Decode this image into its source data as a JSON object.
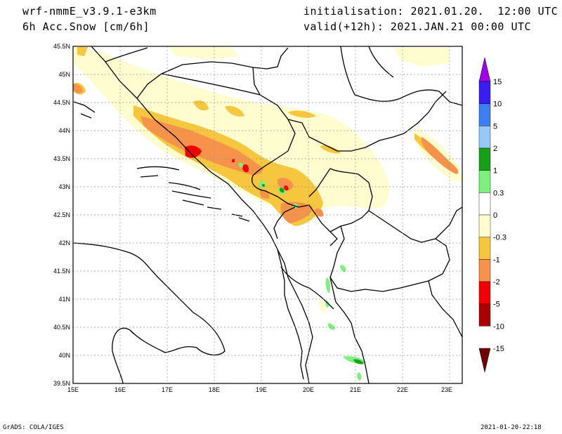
{
  "header": {
    "model": "wrf-nmmE_v3.9.1-e3km",
    "field": "6h Acc.Snow [cm/6h]",
    "init": "initialisation: 2021.01.20.  12:00 UTC",
    "valid": "valid(+12h): 2021.JAN.21 00:00 UTC"
  },
  "map": {
    "lat_labels": [
      "45.5N",
      "45N",
      "44.5N",
      "44N",
      "43.5N",
      "43N",
      "42.5N",
      "42N",
      "41.5N",
      "41N",
      "40.5N",
      "40N",
      "39.5N"
    ],
    "lon_labels": [
      "15E",
      "16E",
      "17E",
      "18E",
      "19E",
      "20E",
      "21E",
      "22E",
      "23E"
    ]
  },
  "colorbar": {
    "labels": [
      "15",
      "10",
      "5",
      "2",
      "1",
      "0.3",
      "0",
      "-0.3",
      "-1",
      "-2",
      "-5",
      "-10",
      "-15"
    ],
    "colors": [
      "#3a1df0",
      "#3d7ff0",
      "#96c8f8",
      "#16a016",
      "#7ef07e",
      "#ffffff",
      "#fffcd0",
      "#f6c63e",
      "#f7924a",
      "#f20000",
      "#aa0000"
    ],
    "top_arrow_color": "#a000e8",
    "bottom_arrow_color": "#6e0000"
  },
  "footer": {
    "left": "GrADS: COLA/IGES",
    "right": "2021-01-20-22:18"
  }
}
